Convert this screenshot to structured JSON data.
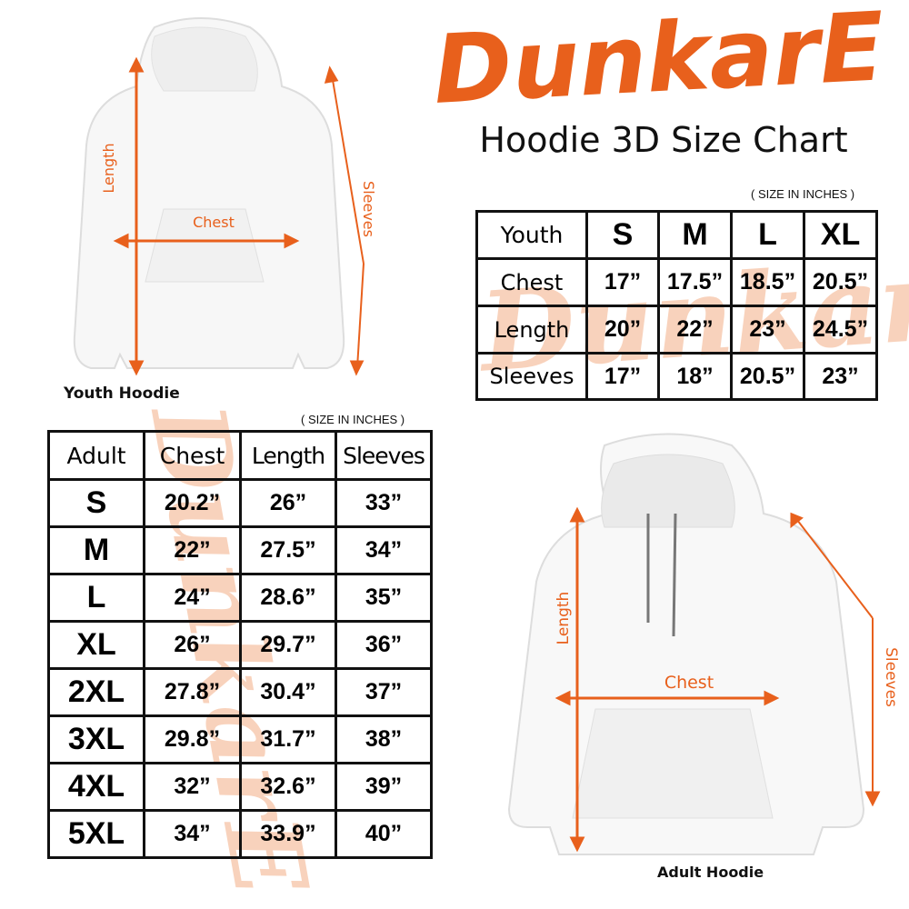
{
  "brand": {
    "logo_text": "DunkarE",
    "color": "#e8601c",
    "watermark_color": "#f6c4a6"
  },
  "title": "Hoodie 3D Size Chart",
  "youth": {
    "unit_note": "( SIZE IN INCHES )",
    "caption": "Youth Hoodie",
    "diagram_labels": {
      "length": "Length",
      "chest": "Chest",
      "sleeves": "Sleeves"
    },
    "headers": [
      "Youth",
      "S",
      "M",
      "L",
      "XL"
    ],
    "rows": [
      {
        "label": "Chest",
        "values": [
          "17”",
          "17.5”",
          "18.5”",
          "20.5”"
        ]
      },
      {
        "label": "Length",
        "values": [
          "20”",
          "22”",
          "23”",
          "24.5”"
        ]
      },
      {
        "label": "Sleeves",
        "values": [
          "17”",
          "18”",
          "20.5”",
          "23”"
        ]
      }
    ]
  },
  "adult": {
    "unit_note": "( SIZE IN INCHES )",
    "caption": "Adult Hoodie",
    "diagram_labels": {
      "length": "Length",
      "chest": "Chest",
      "sleeves": "Sleeves"
    },
    "headers": [
      "Adult",
      "Chest",
      "Length",
      "Sleeves"
    ],
    "rows": [
      {
        "size": "S",
        "values": [
          "20.2”",
          "26”",
          "33”"
        ]
      },
      {
        "size": "M",
        "values": [
          "22”",
          "27.5”",
          "34”"
        ]
      },
      {
        "size": "L",
        "values": [
          "24”",
          "28.6”",
          "35”"
        ]
      },
      {
        "size": "XL",
        "values": [
          "26”",
          "29.7”",
          "36”"
        ]
      },
      {
        "size": "2XL",
        "values": [
          "27.8”",
          "30.4”",
          "37”"
        ]
      },
      {
        "size": "3XL",
        "values": [
          "29.8”",
          "31.7”",
          "38”"
        ]
      },
      {
        "size": "4XL",
        "values": [
          "32”",
          "32.6”",
          "39”"
        ]
      },
      {
        "size": "5XL",
        "values": [
          "34”",
          "33.9”",
          "40”"
        ]
      }
    ]
  }
}
